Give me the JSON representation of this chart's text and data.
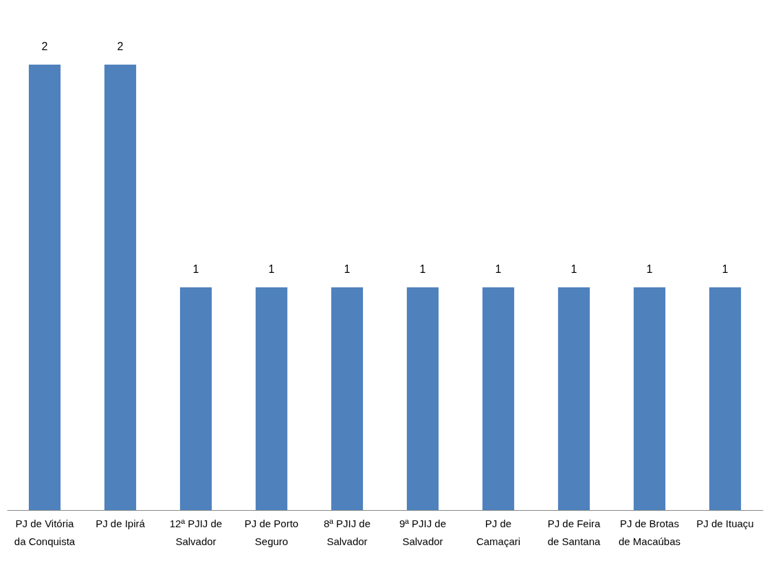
{
  "chart_data": {
    "type": "bar",
    "categories": [
      "PJ de Vitória da Conquista",
      "PJ de Ipirá",
      "12ª PJIJ de Salvador",
      "PJ de Porto Seguro",
      "8ª PJIJ de Salvador",
      "9ª PJIJ de Salvador",
      "PJ de Camaçari",
      "PJ de Feira de Santana",
      "PJ de Brotas de Macaúbas",
      "PJ de Ituaçu"
    ],
    "values": [
      2,
      2,
      1,
      1,
      1,
      1,
      1,
      1,
      1,
      1
    ],
    "color": "#4f81bd",
    "data_labels": true,
    "grid": false
  }
}
